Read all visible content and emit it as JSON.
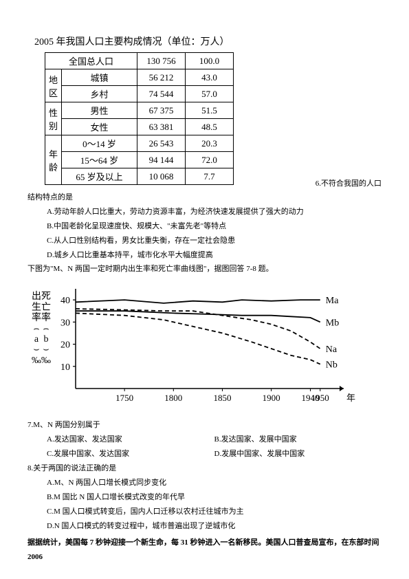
{
  "table": {
    "title": "2005 年我国人口主要构成情况（单位：万人）",
    "header": {
      "label": "全国总人口",
      "count": "130 756",
      "pct": "100.0"
    },
    "groups": [
      {
        "group": "地区",
        "rows": [
          {
            "label": "城镇",
            "count": "56 212",
            "pct": "43.0"
          },
          {
            "label": "乡村",
            "count": "74 544",
            "pct": "57.0"
          }
        ]
      },
      {
        "group": "性别",
        "rows": [
          {
            "label": "男性",
            "count": "67 375",
            "pct": "51.5"
          },
          {
            "label": "女性",
            "count": "63 381",
            "pct": "48.5"
          }
        ]
      },
      {
        "group": "年龄",
        "rows": [
          {
            "label": "0～14 岁",
            "count": "26 543",
            "pct": "20.3"
          },
          {
            "label": "15～64 岁",
            "count": "94 144",
            "pct": "72.0"
          },
          {
            "label": "65 岁及以上",
            "count": "10 068",
            "pct": "7.7"
          }
        ]
      }
    ]
  },
  "q6": {
    "lead_right": "6.不符合我国的人口",
    "lead_cont": "结构特点的是",
    "A": "A.劳动年龄人口比重大，劳动力资源丰富，为经济快速发展提供了强大的动力",
    "B": "B.中国老龄化呈现速度快、规模大、\"未富先老\"等特点",
    "C": "C.从人口性别结构看，男女比重失衡，存在一定社会隐患",
    "D": "D.城乡人口比重基本持平，城市化水平大幅度提高"
  },
  "chart_intro": "下图为\"M、N 两国一定时期内出生率和死亡率曲线图\"，据图回答 7-8 题。",
  "chart": {
    "type": "line",
    "xlim": [
      1700,
      1960
    ],
    "ylim": [
      0,
      45
    ],
    "yticks": [
      10,
      20,
      30,
      40
    ],
    "xticks": [
      1750,
      1800,
      1850,
      1900,
      1940,
      1950
    ],
    "series_labels": {
      "Ma": "Ma",
      "Mb": "Mb",
      "Na": "Na",
      "Nb": "Nb"
    },
    "ylabel_col1": "出生率",
    "ylabel_col2": "死亡率",
    "ylabel_a": "a",
    "ylabel_b": "b",
    "ylabel_unit": "‰",
    "xlabel_year": "年",
    "axis_color": "#000000",
    "line_width": 1.8,
    "Ma": [
      [
        1700,
        39
      ],
      [
        1750,
        40
      ],
      [
        1790,
        38.5
      ],
      [
        1820,
        39.5
      ],
      [
        1850,
        39
      ],
      [
        1870,
        40
      ],
      [
        1900,
        39.5
      ],
      [
        1930,
        40
      ],
      [
        1950,
        40
      ]
    ],
    "Mb": [
      [
        1700,
        35
      ],
      [
        1750,
        35
      ],
      [
        1800,
        34
      ],
      [
        1840,
        33.5
      ],
      [
        1870,
        33
      ],
      [
        1900,
        33
      ],
      [
        1920,
        32.5
      ],
      [
        1940,
        32
      ],
      [
        1950,
        30
      ]
    ],
    "Na": [
      [
        1700,
        36
      ],
      [
        1750,
        35.5
      ],
      [
        1790,
        35
      ],
      [
        1820,
        35
      ],
      [
        1850,
        33
      ],
      [
        1880,
        31
      ],
      [
        1900,
        29
      ],
      [
        1920,
        26
      ],
      [
        1940,
        21
      ],
      [
        1950,
        18
      ]
    ],
    "Nb": [
      [
        1700,
        34
      ],
      [
        1750,
        33
      ],
      [
        1790,
        31
      ],
      [
        1820,
        28
      ],
      [
        1850,
        25
      ],
      [
        1880,
        21
      ],
      [
        1900,
        18
      ],
      [
        1920,
        15
      ],
      [
        1940,
        13
      ],
      [
        1950,
        11
      ]
    ]
  },
  "q7": {
    "stem": "7.M、N 两国分别属于",
    "A": "A.发达国家、发达国家",
    "B": "B.发达国家、发展中国家",
    "C": "C.发展中国家、发达国家",
    "D": "D.发展中国家、发展中国家"
  },
  "q8": {
    "stem": "8.关于两国的说法正确的是",
    "A": "A.M、N 两国人口增长模式同步变化",
    "B": "B.M 国比 N 国人口增长模式改变的年代早",
    "C": "C.M 国人口模式转变后，国内人口迁移以农村迁往城市为主",
    "D": "D.N 国人口模式的转变过程中，城市普遍出现了逆城市化"
  },
  "footer": "据据统计，美国每 7 秒钟迎接一个新生命，每 31 秒钟进入一名新移民。美国人口普查局宣布，在东部时间 2006"
}
